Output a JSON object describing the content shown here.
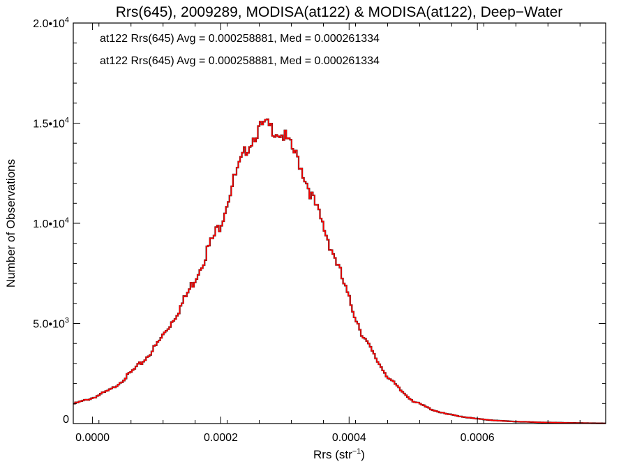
{
  "chart_data": {
    "type": "histogram",
    "title": "Rrs(645), 2009289, MODISA(at122) & MODISA(at122), Deep−Water",
    "xlabel": "Rrs (str",
    "xlabel_sup": "−1",
    "xlabel_suffix": ")",
    "ylabel": "Number of Observations",
    "xlim": [
      -3e-05,
      0.0008
    ],
    "ylim": [
      0,
      20000
    ],
    "x_ticks": [
      {
        "value": 0.0,
        "label": "0.0000"
      },
      {
        "value": 0.0002,
        "label": "0.0002"
      },
      {
        "value": 0.0004,
        "label": "0.0004"
      },
      {
        "value": 0.0006,
        "label": "0.0006"
      }
    ],
    "y_ticks": [
      {
        "value": 0,
        "mant": "0",
        "exp": ""
      },
      {
        "value": 5000,
        "mant": "5.0•10",
        "exp": "3"
      },
      {
        "value": 10000,
        "mant": "1.0•10",
        "exp": "4"
      },
      {
        "value": 15000,
        "mant": "1.5•10",
        "exp": "4"
      },
      {
        "value": 20000,
        "mant": "2.0•10",
        "exp": "4"
      }
    ],
    "grid": false,
    "annotations": [
      {
        "text": "at122 Rrs(645) Avg = 0.000258881, Med = 0.000261334",
        "color": "#000000"
      },
      {
        "text": "at122 Rrs(645) Avg = 0.000258881, Med = 0.000261334",
        "color": "#ff0000"
      }
    ],
    "series_color": "#ff0000",
    "series_overlay_color": "#000000",
    "curve_points": [
      [
        -3e-05,
        1000
      ],
      [
        0.0,
        1300
      ],
      [
        3e-05,
        1750
      ],
      [
        5e-05,
        2300
      ],
      [
        8e-05,
        3200
      ],
      [
        0.0001,
        4000
      ],
      [
        0.00012,
        5000
      ],
      [
        0.00014,
        6100
      ],
      [
        0.00016,
        7400
      ],
      [
        0.00018,
        8900
      ],
      [
        0.0002,
        10200
      ],
      [
        0.00022,
        12300
      ],
      [
        0.00024,
        13900
      ],
      [
        0.00026,
        14900
      ],
      [
        0.00027,
        15100
      ],
      [
        0.00028,
        14900
      ],
      [
        0.0003,
        14500
      ],
      [
        0.00032,
        13400
      ],
      [
        0.00034,
        11700
      ],
      [
        0.00036,
        10000
      ],
      [
        0.00038,
        8300
      ],
      [
        0.0004,
        6300
      ],
      [
        0.00042,
        4600
      ],
      [
        0.00044,
        3400
      ],
      [
        0.00046,
        2400
      ],
      [
        0.00048,
        1700
      ],
      [
        0.0005,
        1150
      ],
      [
        0.00053,
        700
      ],
      [
        0.00055,
        500
      ],
      [
        0.00058,
        330
      ],
      [
        0.0006,
        240
      ],
      [
        0.00063,
        150
      ],
      [
        0.00066,
        100
      ],
      [
        0.0007,
        60
      ],
      [
        0.00075,
        30
      ],
      [
        0.0008,
        10
      ]
    ]
  }
}
